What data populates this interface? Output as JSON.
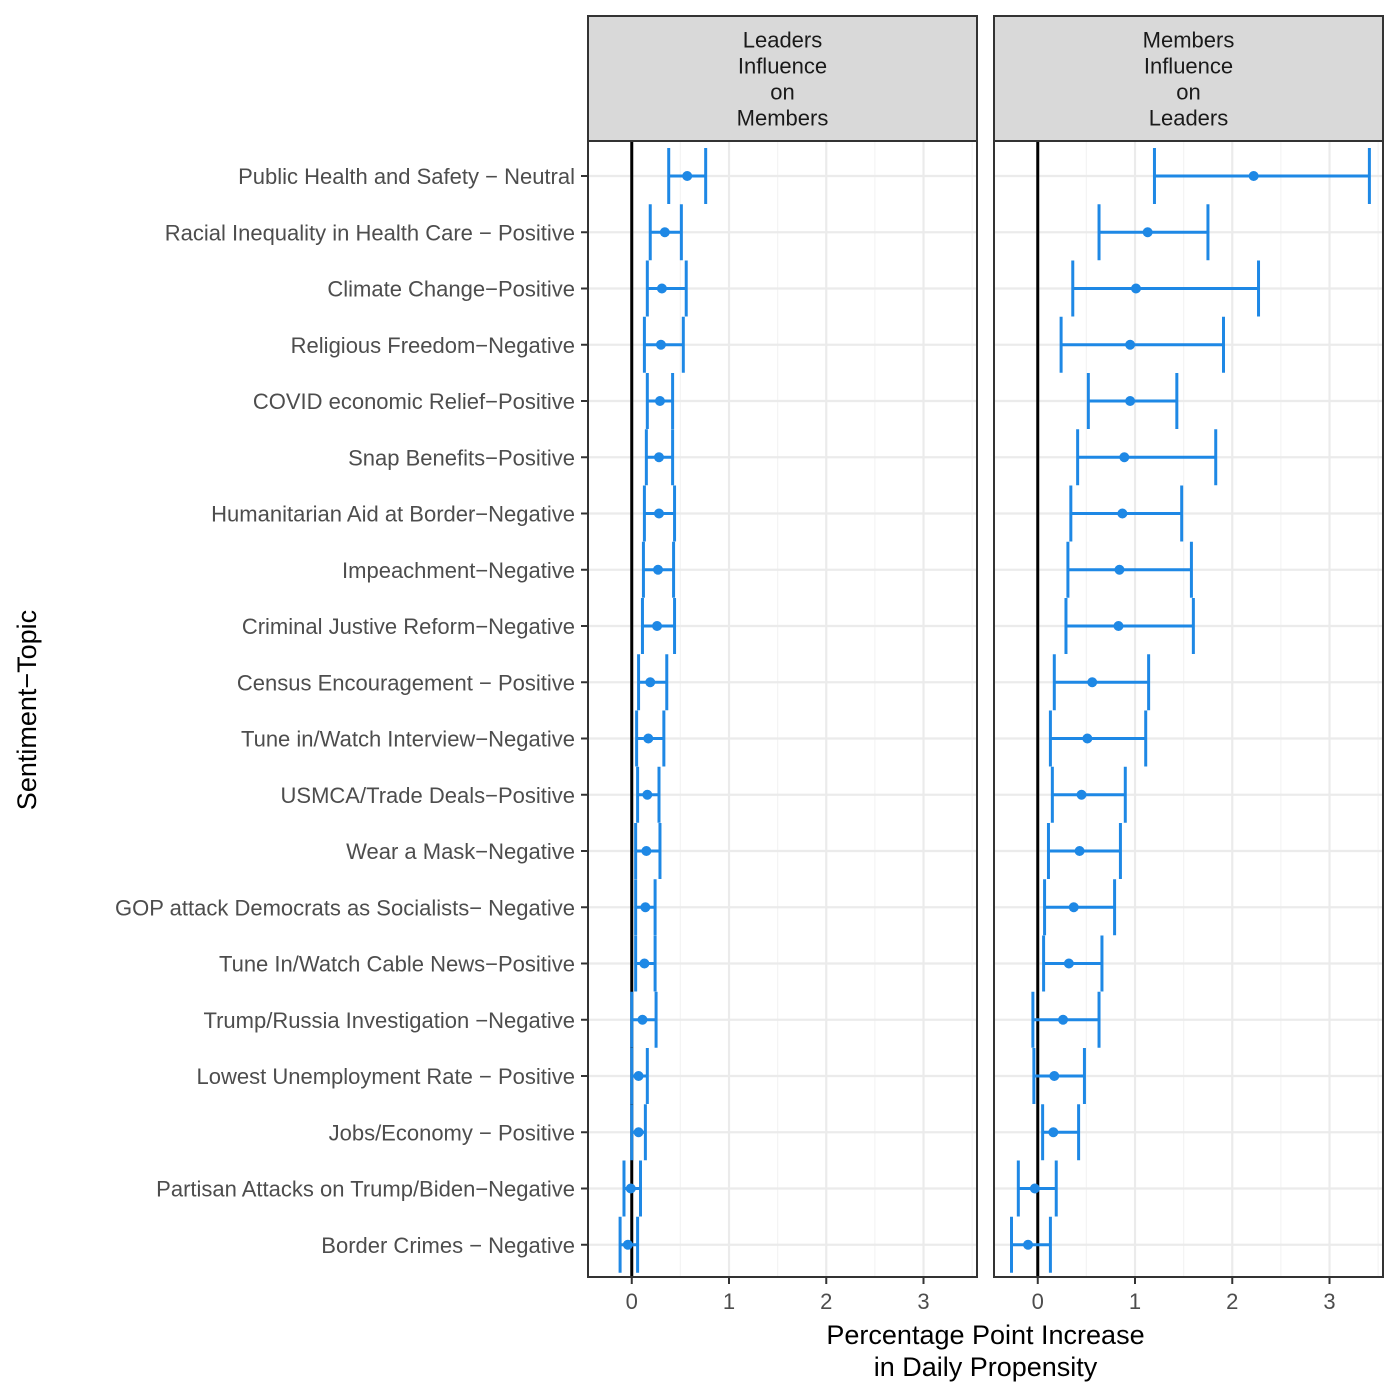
{
  "chart_data": {
    "type": "errorbar",
    "xlabel": [
      "Percentage Point Increase",
      "in Daily Propensity"
    ],
    "ylabel": "Sentiment−Topic",
    "xlim": [
      -0.45,
      3.55
    ],
    "xticks": [
      "0",
      "1",
      "2",
      "3"
    ],
    "xtick_values": [
      0,
      1,
      2,
      3
    ],
    "grid": true,
    "reference_line": 0,
    "color": "#1e88e5",
    "categories": [
      "Public Health and Safety − Neutral",
      "Racial Inequality in Health Care − Positive",
      "Climate Change−Positive",
      "Religious Freedom−Negative",
      "COVID economic Relief−Positive",
      "Snap Benefits−Positive",
      "Humanitarian Aid at Border−Negative",
      "Impeachment−Negative",
      "Criminal Justive Reform−Negative",
      "Census Encouragement − Positive",
      "Tune in/Watch Interview−Negative",
      "USMCA/Trade Deals−Positive",
      "Wear a Mask−Negative",
      "GOP attack Democrats as Socialists− Negative",
      "Tune In/Watch Cable News−Positive",
      "Trump/Russia Investigation −Negative",
      "Lowest Unemployment Rate − Positive",
      "Jobs/Economy − Positive",
      "Partisan Attacks on Trump/Biden−Negative",
      "Border Crimes − Negative"
    ],
    "panels": [
      {
        "label": [
          "Leaders",
          "Influence",
          "on",
          "Members"
        ],
        "estimates": [
          0.57,
          0.34,
          0.31,
          0.3,
          0.29,
          0.28,
          0.28,
          0.27,
          0.26,
          0.19,
          0.17,
          0.16,
          0.15,
          0.14,
          0.13,
          0.11,
          0.07,
          0.07,
          -0.01,
          -0.04
        ],
        "lower": [
          0.38,
          0.19,
          0.16,
          0.13,
          0.16,
          0.15,
          0.13,
          0.12,
          0.11,
          0.07,
          0.05,
          0.06,
          0.04,
          0.04,
          0.04,
          0.0,
          0.0,
          0.0,
          -0.08,
          -0.12
        ],
        "upper": [
          0.76,
          0.51,
          0.56,
          0.53,
          0.42,
          0.42,
          0.44,
          0.43,
          0.44,
          0.36,
          0.33,
          0.28,
          0.29,
          0.24,
          0.24,
          0.25,
          0.16,
          0.14,
          0.09,
          0.06
        ]
      },
      {
        "label": [
          "Members",
          "Influence",
          "on",
          "Leaders"
        ],
        "estimates": [
          2.22,
          1.13,
          1.01,
          0.95,
          0.95,
          0.89,
          0.87,
          0.84,
          0.83,
          0.56,
          0.51,
          0.45,
          0.43,
          0.37,
          0.32,
          0.26,
          0.17,
          0.16,
          -0.03,
          -0.1
        ],
        "lower": [
          1.2,
          0.63,
          0.36,
          0.24,
          0.52,
          0.41,
          0.34,
          0.31,
          0.29,
          0.17,
          0.13,
          0.15,
          0.11,
          0.07,
          0.06,
          -0.05,
          -0.04,
          0.05,
          -0.2,
          -0.27
        ],
        "upper": [
          3.41,
          1.75,
          2.27,
          1.91,
          1.43,
          1.83,
          1.48,
          1.58,
          1.6,
          1.14,
          1.11,
          0.9,
          0.85,
          0.79,
          0.66,
          0.63,
          0.48,
          0.42,
          0.19,
          0.13
        ]
      }
    ]
  }
}
